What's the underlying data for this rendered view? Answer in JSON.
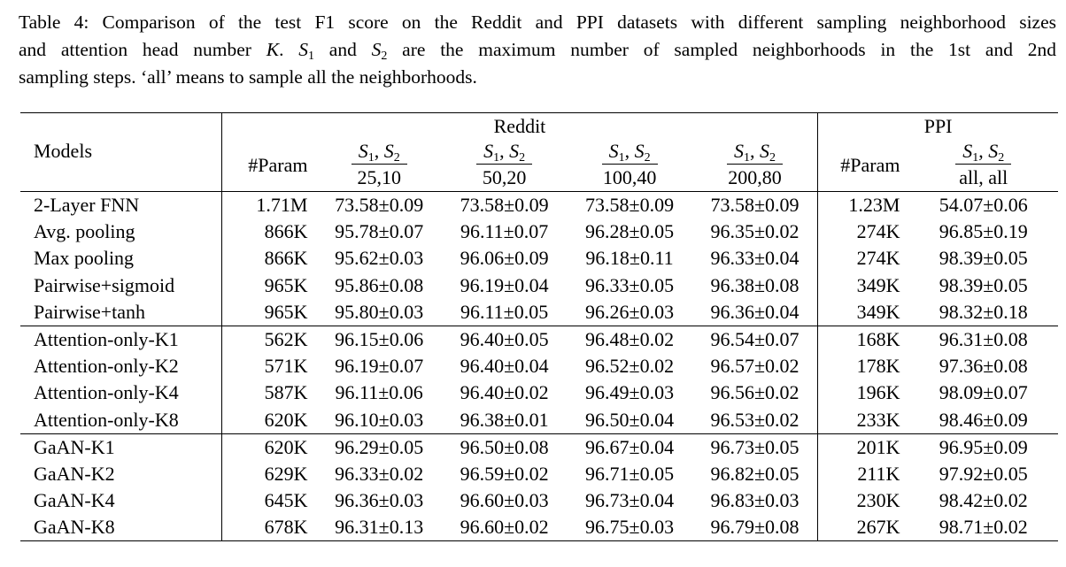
{
  "caption": {
    "line1": "Table 4: Comparison of the test F1 score on the Reddit and PPI datasets with different sampling neighborhood sizes",
    "line2a": "and attention head number ",
    "K": "K",
    "line2b": ". ",
    "S": "S",
    "sub1": "1",
    "line2c": " and ",
    "sub2": "2",
    "line2d": " are the maximum number of sampled neighborhoods in the 1st and 2nd",
    "line3": "sampling steps. ‘all’ means to sample all the neighborhoods."
  },
  "table": {
    "models_header": "Models",
    "reddit_header": "Reddit",
    "ppi_header": "PPI",
    "param_header": "#Param",
    "s_symbol": "S",
    "sub1": "1",
    "sub2": "2",
    "comma": ", ",
    "reddit_settings": [
      "25,10",
      "50,20",
      "100,40",
      "200,80"
    ],
    "ppi_setting": "all, all",
    "groups": [
      [
        {
          "model": "2-Layer FNN",
          "reddit_param": "1.71M",
          "r": [
            "73.58±0.09",
            "73.58±0.09",
            "73.58±0.09",
            "73.58±0.09"
          ],
          "ppi_param": "1.23M",
          "p": "54.07±0.06"
        },
        {
          "model": "Avg. pooling",
          "reddit_param": "866K",
          "r": [
            "95.78±0.07",
            "96.11±0.07",
            "96.28±0.05",
            "96.35±0.02"
          ],
          "ppi_param": "274K",
          "p": "96.85±0.19"
        },
        {
          "model": "Max pooling",
          "reddit_param": "866K",
          "r": [
            "95.62±0.03",
            "96.06±0.09",
            "96.18±0.11",
            "96.33±0.04"
          ],
          "ppi_param": "274K",
          "p": "98.39±0.05"
        },
        {
          "model": "Pairwise+sigmoid",
          "reddit_param": "965K",
          "r": [
            "95.86±0.08",
            "96.19±0.04",
            "96.33±0.05",
            "96.38±0.08"
          ],
          "ppi_param": "349K",
          "p": "98.39±0.05"
        },
        {
          "model": "Pairwise+tanh",
          "reddit_param": "965K",
          "r": [
            "95.80±0.03",
            "96.11±0.05",
            "96.26±0.03",
            "96.36±0.04"
          ],
          "ppi_param": "349K",
          "p": "98.32±0.18"
        }
      ],
      [
        {
          "model": "Attention-only-K1",
          "reddit_param": "562K",
          "r": [
            "96.15±0.06",
            "96.40±0.05",
            "96.48±0.02",
            "96.54±0.07"
          ],
          "ppi_param": "168K",
          "p": "96.31±0.08"
        },
        {
          "model": "Attention-only-K2",
          "reddit_param": "571K",
          "r": [
            "96.19±0.07",
            "96.40±0.04",
            "96.52±0.02",
            "96.57±0.02"
          ],
          "ppi_param": "178K",
          "p": "97.36±0.08"
        },
        {
          "model": "Attention-only-K4",
          "reddit_param": "587K",
          "r": [
            "96.11±0.06",
            "96.40±0.02",
            "96.49±0.03",
            "96.56±0.02"
          ],
          "ppi_param": "196K",
          "p": "98.09±0.07"
        },
        {
          "model": "Attention-only-K8",
          "reddit_param": "620K",
          "r": [
            "96.10±0.03",
            "96.38±0.01",
            "96.50±0.04",
            "96.53±0.02"
          ],
          "ppi_param": "233K",
          "p": "98.46±0.09"
        }
      ],
      [
        {
          "model": "GaAN-K1",
          "reddit_param": "620K",
          "r": [
            "96.29±0.05",
            "96.50±0.08",
            "96.67±0.04",
            "96.73±0.05"
          ],
          "ppi_param": "201K",
          "p": "96.95±0.09"
        },
        {
          "model": "GaAN-K2",
          "reddit_param": "629K",
          "r": [
            "96.33±0.02",
            "96.59±0.02",
            "96.71±0.05",
            "96.82±0.05"
          ],
          "ppi_param": "211K",
          "p": "97.92±0.05"
        },
        {
          "model": "GaAN-K4",
          "reddit_param": "645K",
          "r": [
            "96.36±0.03",
            "96.60±0.03",
            "96.73±0.04",
            "96.83±0.03"
          ],
          "r_bold": [
            true,
            true,
            false,
            true
          ],
          "ppi_param": "230K",
          "p": "98.42±0.02"
        },
        {
          "model": "GaAN-K8",
          "reddit_param": "678K",
          "r": [
            "96.31±0.13",
            "96.60±0.02",
            "96.75±0.03",
            "96.79±0.08"
          ],
          "r_bold": [
            false,
            true,
            true,
            false
          ],
          "ppi_param": "267K",
          "p": "98.71±0.02",
          "p_bold": true
        }
      ]
    ]
  }
}
